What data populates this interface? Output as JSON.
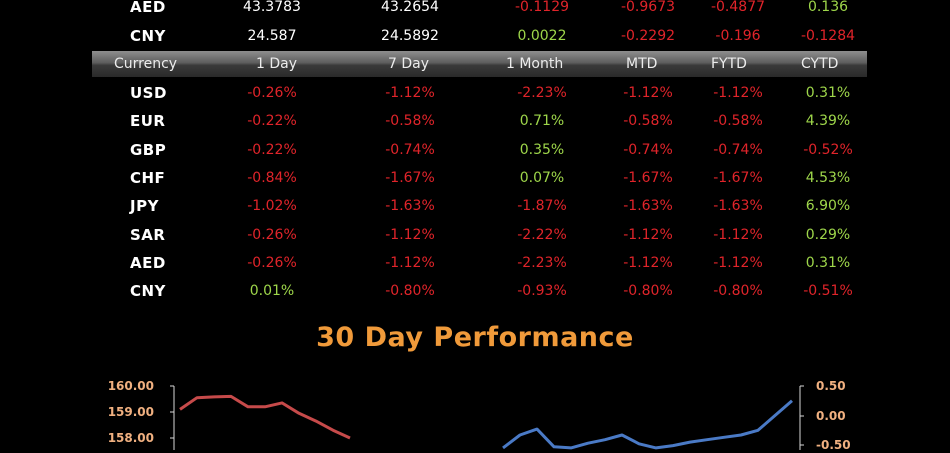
{
  "colors": {
    "positive": "#9ed64a",
    "negative": "#e0242a",
    "neutral": "#ffffff",
    "title": "#f09a3a",
    "left_axis_ticks": "#f0b080",
    "right_axis_ticks": "#f0b080",
    "left_series": "#c64a4a",
    "right_series": "#4a7ac6"
  },
  "top_rows": [
    {
      "currency": "AED",
      "values": [
        "43.3783",
        "43.2654",
        "-0.1129",
        "-0.9673",
        "-0.4877",
        "0.136"
      ],
      "colors": [
        "neutral",
        "neutral",
        "negative",
        "negative",
        "negative",
        "positive"
      ]
    },
    {
      "currency": "CNY",
      "values": [
        "24.587",
        "24.5892",
        "0.0022",
        "-0.2292",
        "-0.196",
        "-0.1284"
      ],
      "colors": [
        "neutral",
        "neutral",
        "positive",
        "negative",
        "negative",
        "negative"
      ]
    }
  ],
  "header": {
    "currency": "Currency",
    "c1": "1 Day",
    "c2": "7 Day",
    "c3": "1 Month",
    "c4": "MTD",
    "c5": "FYTD",
    "c6": "CYTD"
  },
  "perf_rows": [
    {
      "currency": "USD",
      "values": [
        "-0.26%",
        "-1.12%",
        "-2.23%",
        "-1.12%",
        "-1.12%",
        "0.31%"
      ]
    },
    {
      "currency": "EUR",
      "values": [
        "-0.22%",
        "-0.58%",
        "0.71%",
        "-0.58%",
        "-0.58%",
        "4.39%"
      ]
    },
    {
      "currency": "GBP",
      "values": [
        "-0.22%",
        "-0.74%",
        "0.35%",
        "-0.74%",
        "-0.74%",
        "-0.52%"
      ]
    },
    {
      "currency": "CHF",
      "values": [
        "-0.84%",
        "-1.67%",
        "0.07%",
        "-1.67%",
        "-1.67%",
        "4.53%"
      ]
    },
    {
      "currency": "JPY",
      "values": [
        "-1.02%",
        "-1.63%",
        "-1.87%",
        "-1.63%",
        "-1.63%",
        "6.90%"
      ]
    },
    {
      "currency": "SAR",
      "values": [
        "-0.26%",
        "-1.12%",
        "-2.22%",
        "-1.12%",
        "-1.12%",
        "0.29%"
      ]
    },
    {
      "currency": "AED",
      "values": [
        "-0.26%",
        "-1.12%",
        "-2.23%",
        "-1.12%",
        "-1.12%",
        "0.31%"
      ]
    },
    {
      "currency": "CNY",
      "values": [
        "0.01%",
        "-0.80%",
        "-0.93%",
        "-0.80%",
        "-0.80%",
        "-0.51%"
      ]
    }
  ],
  "chart_data": {
    "type": "line",
    "title": "30 Day Performance",
    "left_axis": {
      "ticks": [
        "160.00",
        "159.00",
        "158.00"
      ],
      "range_visible": [
        157.6,
        160.3
      ]
    },
    "right_axis": {
      "ticks": [
        "0.50",
        "0.00",
        "-0.50"
      ],
      "range_visible": [
        -0.7,
        0.6
      ]
    },
    "series": [
      {
        "axis": "left",
        "x": [
          0,
          1,
          2,
          3,
          4,
          5,
          6,
          7,
          8,
          9,
          10
        ],
        "values": [
          159.1,
          159.55,
          159.58,
          159.6,
          159.2,
          159.2,
          159.35,
          158.95,
          158.65,
          158.3,
          158.0
        ]
      },
      {
        "axis": "right",
        "x": [
          19,
          20,
          21,
          22,
          23,
          24,
          25,
          26,
          27,
          28,
          29,
          30,
          31,
          32,
          33,
          34,
          35,
          36
        ],
        "values": [
          -0.55,
          -0.33,
          -0.23,
          -0.53,
          -0.55,
          -0.47,
          -0.41,
          -0.33,
          -0.48,
          -0.55,
          -0.51,
          -0.45,
          -0.41,
          -0.37,
          -0.33,
          -0.25,
          0.0,
          0.25
        ]
      }
    ]
  }
}
